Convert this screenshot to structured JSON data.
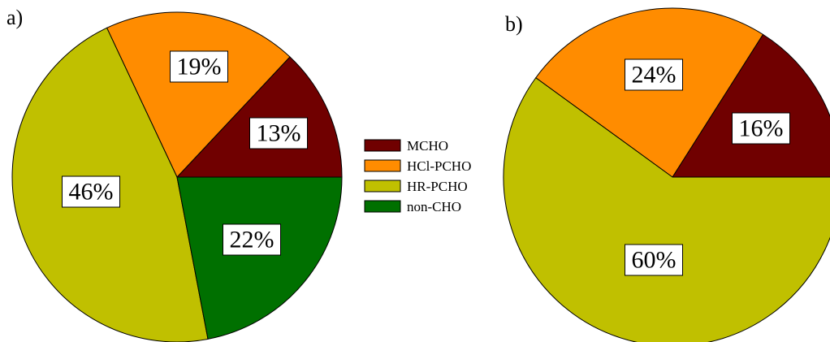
{
  "chart_data": [
    {
      "type": "pie",
      "panel_label": "a)",
      "start_angle_deg": 0,
      "direction": "counterclockwise",
      "slices": [
        {
          "label": "MCHO",
          "value": 13,
          "text": "13%",
          "color": "#700000"
        },
        {
          "label": "HCl-PCHO",
          "value": 19,
          "text": "19%",
          "color": "#FF8C00"
        },
        {
          "label": "HR-PCHO",
          "value": 46,
          "text": "46%",
          "color": "#C0C000"
        },
        {
          "label": "non-CHO",
          "value": 22,
          "text": "22%",
          "color": "#007000"
        }
      ]
    },
    {
      "type": "pie",
      "panel_label": "b)",
      "start_angle_deg": 0,
      "direction": "counterclockwise",
      "slices": [
        {
          "label": "MCHO",
          "value": 16,
          "text": "16%",
          "color": "#700000"
        },
        {
          "label": "HCl-PCHO",
          "value": 24,
          "text": "24%",
          "color": "#FF8C00"
        },
        {
          "label": "HR-PCHO",
          "value": 60,
          "text": "60%",
          "color": "#C0C000"
        }
      ]
    }
  ],
  "legend": {
    "placement": "center",
    "items": [
      {
        "label": "MCHO",
        "color": "#700000"
      },
      {
        "label": "HCl-PCHO",
        "color": "#FF8C00"
      },
      {
        "label": "HR-PCHO",
        "color": "#C0C000"
      },
      {
        "label": "non-CHO",
        "color": "#007000"
      }
    ]
  }
}
